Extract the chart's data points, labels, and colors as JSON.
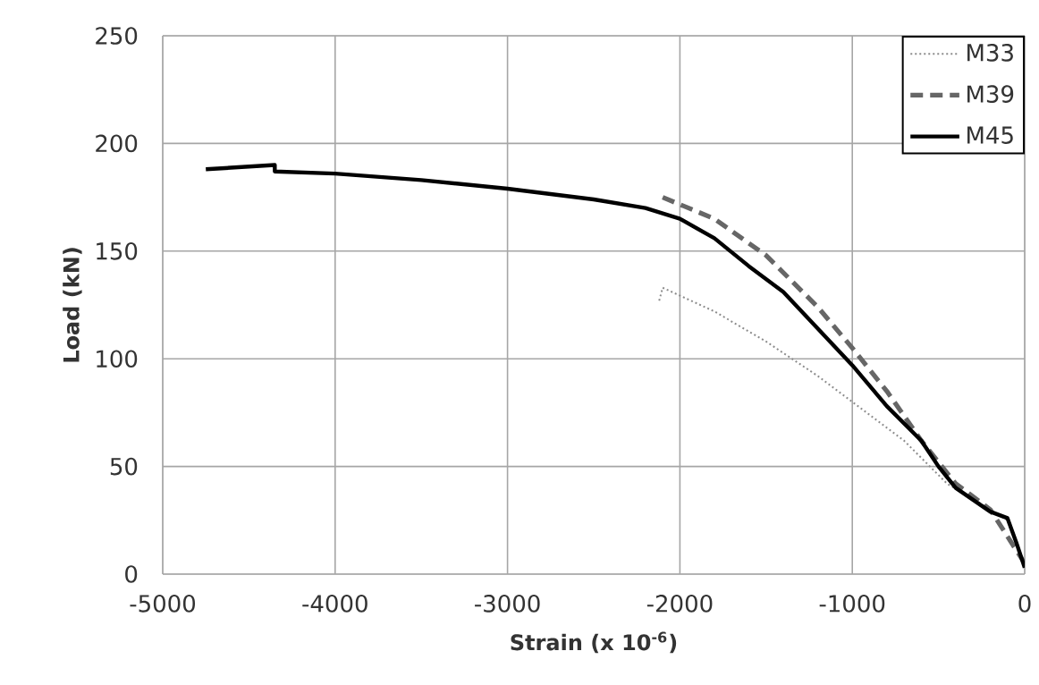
{
  "chart_data": {
    "type": "line",
    "xlabel": "Strain (x 10$^{-6}$)",
    "ylabel": "Load (kN)",
    "xlim": [
      -5000,
      0
    ],
    "xticks": [
      -5000,
      -4000,
      -3000,
      -2000,
      -1000,
      0
    ],
    "ylim": [
      0,
      250
    ],
    "yticks": [
      0,
      50,
      100,
      150,
      200,
      250
    ],
    "grid": true,
    "legend": "top right",
    "series": [
      {
        "name": "M33",
        "color": "#8c8c8c",
        "line_style": "dotted",
        "x": [
          -2120,
          -2100,
          -1800,
          -1500,
          -1200,
          -1000,
          -700,
          -450,
          -300,
          -100,
          0
        ],
        "values": [
          127,
          133,
          122,
          108,
          92,
          80,
          62,
          42,
          35,
          25,
          3
        ]
      },
      {
        "name": "M39",
        "color": "#666666",
        "line_style": "dashed",
        "x": [
          -2100,
          -1800,
          -1500,
          -1200,
          -1000,
          -800,
          -600,
          -400,
          -200,
          0
        ],
        "values": [
          175,
          165,
          148,
          124,
          105,
          85,
          62,
          42,
          30,
          5
        ]
      },
      {
        "name": "M45",
        "color": "#000000",
        "line_style": "solid",
        "x": [
          -4750,
          -4350,
          -4350,
          -4000,
          -3500,
          -3000,
          -2500,
          -2200,
          -2000,
          -1800,
          -1600,
          -1400,
          -1200,
          -1000,
          -800,
          -600,
          -500,
          -400,
          -200,
          -100,
          -50,
          0
        ],
        "values": [
          188,
          190,
          187,
          186,
          183,
          179,
          174,
          170,
          165,
          156,
          143,
          131,
          114,
          97,
          78,
          62,
          50,
          40,
          29,
          26,
          15,
          3
        ]
      }
    ]
  }
}
